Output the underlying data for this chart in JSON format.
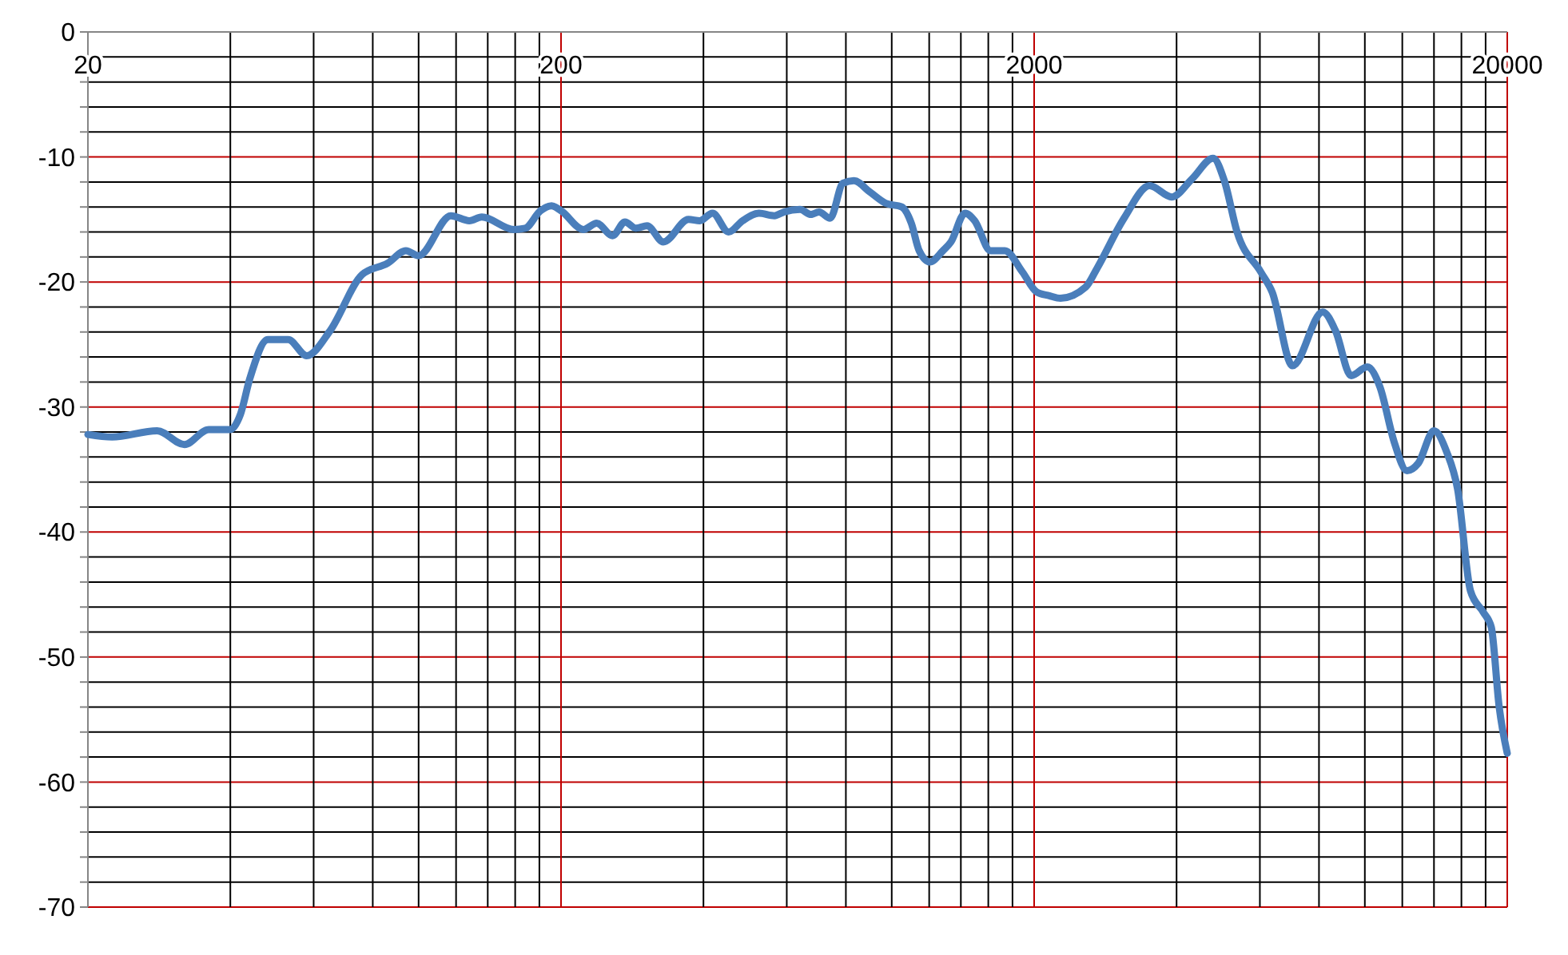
{
  "chart_data": {
    "type": "line",
    "log": "x",
    "grid": true,
    "marker": "none",
    "line_style": "solid",
    "xlim": [
      20,
      20000
    ],
    "ylim": [
      -70,
      0
    ],
    "xticks": [
      20,
      {
        "value": 40,
        "label": null
      },
      {
        "value": 60,
        "label": null
      },
      {
        "value": 80,
        "label": null
      },
      {
        "value": 100,
        "label": null
      },
      {
        "value": 120,
        "label": null
      },
      {
        "value": 140,
        "label": null
      },
      {
        "value": 160,
        "label": null
      },
      {
        "value": 180,
        "label": null
      },
      200,
      {
        "value": 400,
        "label": null
      },
      {
        "value": 600,
        "label": null
      },
      {
        "value": 800,
        "label": null
      },
      {
        "value": 1000,
        "label": null
      },
      {
        "value": 1200,
        "label": null
      },
      {
        "value": 1400,
        "label": null
      },
      {
        "value": 1600,
        "label": null
      },
      {
        "value": 1800,
        "label": null
      },
      2000,
      {
        "value": 4000,
        "label": null
      },
      {
        "value": 6000,
        "label": null
      },
      {
        "value": 8000,
        "label": null
      },
      {
        "value": 10000,
        "label": null
      },
      {
        "value": 12000,
        "label": null
      },
      {
        "value": 14000,
        "label": null
      },
      {
        "value": 16000,
        "label": null
      },
      {
        "value": 18000,
        "label": null
      },
      20000
    ],
    "yticks": [
      -70,
      {
        "value": -68,
        "label": null
      },
      {
        "value": -66,
        "label": null
      },
      {
        "value": -64,
        "label": null
      },
      {
        "value": -62,
        "label": null
      },
      -60,
      {
        "value": -58,
        "label": null
      },
      {
        "value": -56,
        "label": null
      },
      {
        "value": -54,
        "label": null
      },
      {
        "value": -52,
        "label": null
      },
      -50,
      {
        "value": -48,
        "label": null
      },
      {
        "value": -46,
        "label": null
      },
      {
        "value": -44,
        "label": null
      },
      {
        "value": -42,
        "label": null
      },
      -40,
      {
        "value": -38,
        "label": null
      },
      {
        "value": -36,
        "label": null
      },
      {
        "value": -34,
        "label": null
      },
      {
        "value": -32,
        "label": null
      },
      -30,
      {
        "value": -28,
        "label": null
      },
      {
        "value": -26,
        "label": null
      },
      {
        "value": -24,
        "label": null
      },
      {
        "value": -22,
        "label": null
      },
      -20,
      {
        "value": -18,
        "label": null
      },
      {
        "value": -16,
        "label": null
      },
      {
        "value": -14,
        "label": null
      },
      {
        "value": -12,
        "label": null
      },
      -10,
      {
        "value": -8,
        "label": null
      },
      {
        "value": -6,
        "label": null
      },
      {
        "value": -4,
        "label": null
      },
      {
        "value": -2,
        "label": null
      },
      0
    ],
    "x": [
      20,
      22.5,
      28,
      32,
      36,
      40,
      42,
      44,
      48,
      53,
      58,
      65,
      76,
      86,
      94,
      100,
      117,
      128,
      136,
      159,
      168,
      181,
      191,
      200,
      223,
      238,
      257,
      273,
      288,
      304,
      329,
      372,
      393,
      418,
      452,
      484,
      524,
      565,
      592,
      640,
      675,
      702,
      741,
      789,
      832,
      899,
      971,
      1050,
      1100,
      1143,
      1205,
      1283,
      1334,
      1429,
      1497,
      1618,
      1734,
      1889,
      2024,
      2153,
      2274,
      2571,
      2717,
      3098,
      3507,
      3909,
      4325,
      4777,
      5047,
      5370,
      6027,
      6369,
      7035,
      8147,
      8670,
      9355,
      10114,
      10763,
      11535,
      12275,
      12972,
      14000,
      14895,
      15710,
      16720,
      17790,
      18500,
      19230,
      20000
    ],
    "series": [
      {
        "color": "#4a7ebb",
        "values": [
          -32.2,
          -32.4,
          -31.9,
          -33.0,
          -31.8,
          -31.8,
          -30.6,
          -27.7,
          -24.6,
          -24.6,
          -25.9,
          -23.9,
          -19.4,
          -18.5,
          -17.5,
          -17.9,
          -14.7,
          -15.1,
          -14.8,
          -15.8,
          -15.7,
          -14.3,
          -13.9,
          -14.3,
          -15.8,
          -15.3,
          -16.3,
          -15.2,
          -15.7,
          -15.5,
          -16.8,
          -15.0,
          -15.1,
          -14.5,
          -16.0,
          -15.1,
          -14.5,
          -14.7,
          -14.4,
          -14.2,
          -14.6,
          -14.4,
          -14.9,
          -12.1,
          -11.9,
          -12.8,
          -13.7,
          -14.0,
          -15.3,
          -17.5,
          -18.4,
          -17.5,
          -16.8,
          -14.5,
          -15.1,
          -17.5,
          -17.5,
          -19.2,
          -20.8,
          -21.1,
          -21.3,
          -20.4,
          -18.9,
          -14.9,
          -12.3,
          -13.2,
          -11.7,
          -10.1,
          -11.9,
          -16.0,
          -19.2,
          -20.8,
          -26.7,
          -22.4,
          -23.9,
          -27.5,
          -26.8,
          -28.4,
          -32.8,
          -35.1,
          -34.5,
          -31.9,
          -33.6,
          -36.6,
          -44.7,
          -46.4,
          -47.6,
          -54.0,
          -57.7
        ]
      }
    ]
  }
}
